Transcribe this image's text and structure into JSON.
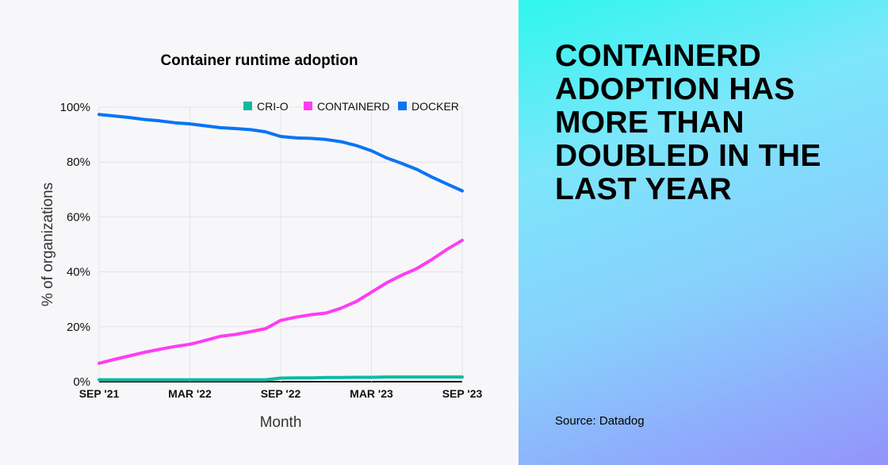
{
  "headline": "CONTAINERD ADOPTION HAS MORE THAN DOUBLED IN THE LAST YEAR",
  "source": "Source: Datadog",
  "chart_data": {
    "type": "line",
    "title": "Container runtime adoption",
    "xlabel": "Month",
    "ylabel": "% of organizations",
    "x_tick_labels": [
      "SEP '21",
      "MAR '22",
      "SEP '22",
      "MAR '23",
      "SEP '23"
    ],
    "y_tick_labels": [
      "0%",
      "20%",
      "40%",
      "60%",
      "80%",
      "100%"
    ],
    "ylim": [
      0,
      100
    ],
    "x_months": 25,
    "grid": true,
    "legend_position": "top-right",
    "series": [
      {
        "name": "CRI-O",
        "color": "#0fb9a0",
        "values": [
          0.7,
          0.7,
          0.7,
          0.7,
          0.7,
          0.7,
          0.7,
          0.7,
          0.7,
          0.7,
          0.7,
          0.7,
          1.3,
          1.4,
          1.4,
          1.5,
          1.5,
          1.6,
          1.6,
          1.7,
          1.7,
          1.7,
          1.7,
          1.7,
          1.7
        ]
      },
      {
        "name": "CONTAINERD",
        "color": "#ff3cf4",
        "values": [
          6.7,
          8.1,
          9.4,
          10.7,
          11.8,
          12.8,
          13.6,
          15.0,
          16.5,
          17.2,
          18.2,
          19.3,
          22.3,
          23.5,
          24.4,
          25.0,
          26.8,
          29.2,
          32.6,
          36.0,
          38.8,
          41.2,
          44.5,
          48.2,
          51.5
        ]
      },
      {
        "name": "DOCKER",
        "color": "#0a74f5",
        "values": [
          97.3,
          96.8,
          96.2,
          95.5,
          95.0,
          94.3,
          93.9,
          93.2,
          92.5,
          92.2,
          91.8,
          91.0,
          89.3,
          88.8,
          88.6,
          88.2,
          87.4,
          86.0,
          84.1,
          81.5,
          79.5,
          77.3,
          74.5,
          72.0,
          69.5
        ]
      }
    ]
  }
}
